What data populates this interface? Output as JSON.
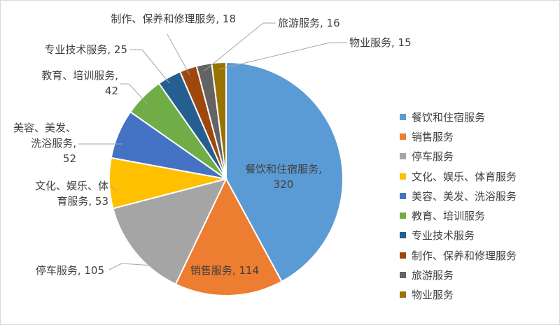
{
  "chart_data": {
    "type": "pie",
    "title": "",
    "legend_position": "right",
    "slices": [
      {
        "label": "餐饮和住宿服务",
        "value": 320,
        "color": "#5B9BD5",
        "data_label": [
          "餐饮和住宿服务,",
          "320"
        ]
      },
      {
        "label": "销售服务",
        "value": 114,
        "color": "#ED7D31",
        "data_label": [
          "销售服务, 114"
        ]
      },
      {
        "label": "停车服务",
        "value": 105,
        "color": "#A5A5A5",
        "data_label": [
          "停车服务, 105"
        ]
      },
      {
        "label": "文化、娱乐、体育服务",
        "value": 53,
        "color": "#FFC000",
        "data_label": [
          "文化、娱乐、体",
          "育服务, 53"
        ]
      },
      {
        "label": "美容、美发、洗浴服务",
        "value": 52,
        "color": "#4472C4",
        "data_label": [
          "美容、美发、",
          "洗浴服务,",
          "52"
        ]
      },
      {
        "label": "教育、培训服务",
        "value": 42,
        "color": "#70AD47",
        "data_label": [
          "教育、培训服务,",
          "42"
        ]
      },
      {
        "label": "专业技术服务",
        "value": 25,
        "color": "#255E91",
        "data_label": [
          "专业技术服务, 25"
        ]
      },
      {
        "label": "制作、保养和修理服务",
        "value": 18,
        "color": "#9E480E",
        "data_label": [
          "制作、保养和修理服务, 18"
        ]
      },
      {
        "label": "旅游服务",
        "value": 16,
        "color": "#636363",
        "data_label": [
          "旅游服务, 16"
        ]
      },
      {
        "label": "物业服务",
        "value": 15,
        "color": "#997300",
        "data_label": [
          "物业服务, 15"
        ]
      }
    ]
  }
}
